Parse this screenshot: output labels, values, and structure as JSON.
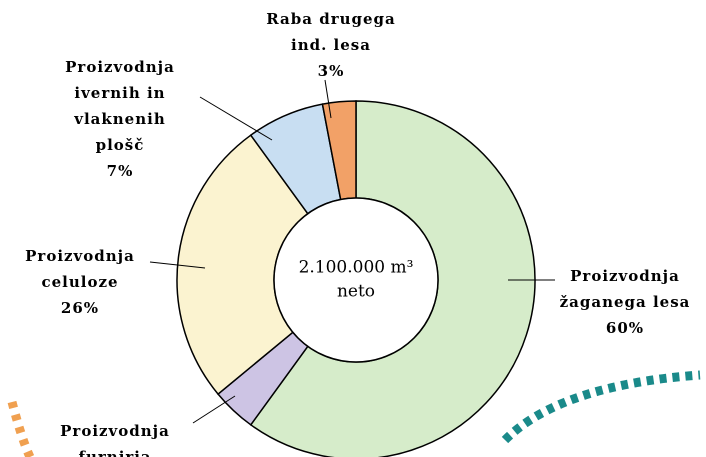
{
  "chart_data": {
    "type": "donut",
    "center_label": [
      "2.100.000 m³",
      "neto"
    ],
    "categories": [
      [
        "Proizvodnja",
        "žaganega lesa"
      ],
      [
        "Proizvodnja",
        "furnirja"
      ],
      [
        "Proizvodnja",
        "celuloze"
      ],
      [
        "Proizvodnja",
        "ivernih in",
        "vlaknenih",
        "plošč"
      ],
      [
        "Raba drugega",
        "ind. lesa"
      ]
    ],
    "values": [
      60,
      4,
      26,
      7,
      3
    ],
    "value_labels": [
      "60%",
      null,
      "26%",
      "7%",
      "3%"
    ],
    "colors": [
      "#d6ecca",
      "#cdc4e4",
      "#fbf3d0",
      "#c8def2",
      "#f2a167"
    ]
  }
}
